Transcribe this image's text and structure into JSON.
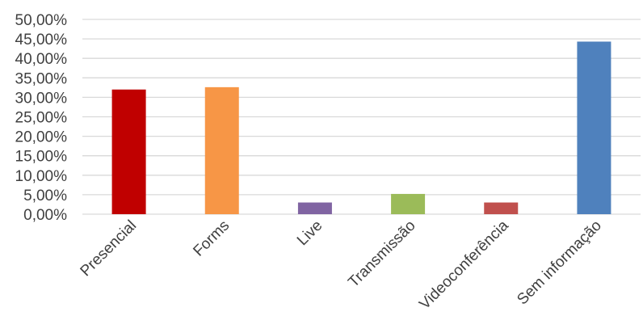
{
  "chart_data": {
    "type": "bar",
    "title": "",
    "xlabel": "",
    "ylabel": "",
    "categories": [
      "Presencial",
      "Forms",
      "Live",
      "Transmissão",
      "Videoconferência",
      "Sem informação"
    ],
    "values": [
      0.32,
      0.326,
      0.03,
      0.052,
      0.03,
      0.443
    ],
    "colors": [
      "#c00000",
      "#f79646",
      "#8064a2",
      "#9bbb59",
      "#c0504d",
      "#4f81bd"
    ],
    "ylim": [
      0,
      0.5
    ],
    "y_ticks": [
      0,
      0.05,
      0.1,
      0.15,
      0.2,
      0.25,
      0.3,
      0.35,
      0.4,
      0.45,
      0.5
    ],
    "y_tick_labels": [
      "0,00%",
      "5,00%",
      "10,00%",
      "15,00%",
      "20,00%",
      "25,00%",
      "30,00%",
      "35,00%",
      "40,00%",
      "45,00%",
      "50,00%"
    ],
    "gridlines": true,
    "gridline_color": "#d9d9d9",
    "legend": "none"
  }
}
